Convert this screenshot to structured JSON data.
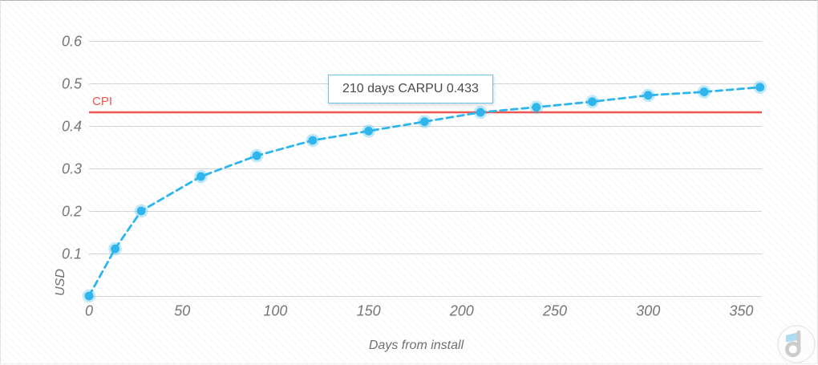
{
  "chart_data": {
    "type": "line",
    "title": "",
    "xlabel": "Days from install",
    "ylabel": "USD",
    "xlim": [
      0,
      361
    ],
    "ylim": [
      0,
      0.6
    ],
    "x_ticks": [
      0,
      50,
      100,
      150,
      200,
      250,
      300,
      350
    ],
    "y_ticks": [
      0,
      0.1,
      0.2,
      0.3,
      0.4,
      0.5,
      0.6
    ],
    "grid": "horizontal",
    "legend_position": "none",
    "series": [
      {
        "name": "CARPU",
        "type": "line",
        "style": "dashed",
        "marker": "circle",
        "color": "#2eb6ec",
        "x": [
          0,
          14,
          28,
          60,
          90,
          120,
          150,
          180,
          210,
          240,
          270,
          300,
          330,
          360
        ],
        "y": [
          0.001,
          0.112,
          0.201,
          0.282,
          0.331,
          0.367,
          0.389,
          0.411,
          0.433,
          0.445,
          0.458,
          0.473,
          0.481,
          0.492
        ]
      },
      {
        "name": "CPI",
        "type": "horizontal-reference-line",
        "style": "solid",
        "color": "#ef5551",
        "value": 0.433
      }
    ],
    "annotations": [
      {
        "type": "tooltip",
        "text": "210 days CARPU 0.433",
        "anchor_x": 210,
        "anchor_y": 0.433
      }
    ]
  },
  "labels": {
    "cpi": "CPI",
    "x_axis_title": "Days from install",
    "y_axis_title": "USD",
    "tooltip": "210 days CARPU 0.433"
  },
  "watermark": {
    "icon": "devtodev-logo"
  },
  "colors": {
    "line": "#2eb6ec",
    "marker_halo": "rgba(46,182,236,0.30)",
    "cpi": "#ef5551",
    "grid": "#d4d4d4",
    "tick_text": "#757575",
    "tooltip_border": "#6cc4e8",
    "logo_blue": "#a8d8f0",
    "logo_gray": "#c7c7c7"
  }
}
